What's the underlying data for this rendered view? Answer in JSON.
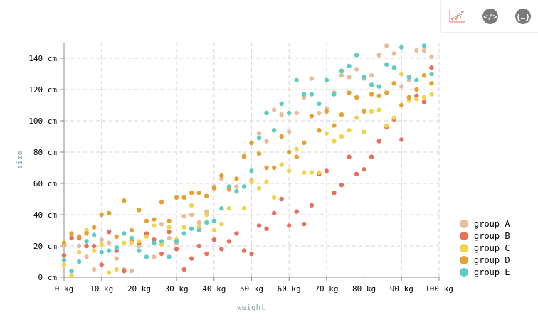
{
  "toolbar": {
    "icons": [
      "chart-preview-icon",
      "code-icon",
      "json-icon"
    ],
    "code_glyph": "</>",
    "json_glyph": "{…}"
  },
  "chart_data": {
    "type": "scatter",
    "title": "",
    "xlabel": "weight",
    "ylabel": "size",
    "xlim": [
      0,
      100
    ],
    "ylim": [
      0,
      150
    ],
    "x_unit": "kg",
    "y_unit": "cm",
    "x_ticks": [
      0,
      10,
      20,
      30,
      40,
      50,
      60,
      70,
      80,
      90,
      100
    ],
    "y_ticks": [
      0,
      20,
      40,
      60,
      80,
      100,
      120,
      140
    ],
    "x_tick_labels": [
      "0 kg",
      "10 kg",
      "20 kg",
      "30 kg",
      "40 kg",
      "50 kg",
      "60 kg",
      "70 kg",
      "80 kg",
      "90 kg",
      "100 kg"
    ],
    "y_tick_labels": [
      "0 cm",
      "20 cm",
      "40 cm",
      "60 cm",
      "80 cm",
      "100 cm",
      "120 cm",
      "140 cm"
    ],
    "grid": true,
    "legend_position": "right-bottom",
    "series": [
      {
        "name": "group A",
        "color": "#e8bc98",
        "points": [
          [
            0,
            20
          ],
          [
            2,
            27
          ],
          [
            4,
            20
          ],
          [
            6,
            13
          ],
          [
            8,
            5
          ],
          [
            10,
            24
          ],
          [
            12,
            22
          ],
          [
            14,
            12
          ],
          [
            16,
            5
          ],
          [
            18,
            4
          ],
          [
            20,
            20
          ],
          [
            22,
            27
          ],
          [
            24,
            13
          ],
          [
            26,
            34
          ],
          [
            28,
            25
          ],
          [
            30,
            22
          ],
          [
            32,
            39
          ],
          [
            34,
            40
          ],
          [
            36,
            35
          ],
          [
            38,
            42
          ],
          [
            40,
            58
          ],
          [
            42,
            63
          ],
          [
            44,
            56
          ],
          [
            46,
            58
          ],
          [
            48,
            78
          ],
          [
            50,
            62
          ],
          [
            52,
            92
          ],
          [
            54,
            87
          ],
          [
            56,
            107
          ],
          [
            58,
            104
          ],
          [
            60,
            93
          ],
          [
            62,
            105
          ],
          [
            64,
            115
          ],
          [
            66,
            127
          ],
          [
            68,
            105
          ],
          [
            70,
            108
          ],
          [
            72,
            118
          ],
          [
            74,
            129
          ],
          [
            76,
            128
          ],
          [
            78,
            133
          ],
          [
            80,
            127
          ],
          [
            82,
            129
          ],
          [
            84,
            142
          ],
          [
            86,
            148
          ],
          [
            88,
            143
          ],
          [
            90,
            122
          ],
          [
            92,
            126
          ],
          [
            94,
            145
          ],
          [
            96,
            145
          ],
          [
            98,
            141
          ]
        ]
      },
      {
        "name": "group B",
        "color": "#e8705a",
        "points": [
          [
            0,
            14
          ],
          [
            2,
            25
          ],
          [
            4,
            25
          ],
          [
            6,
            20
          ],
          [
            8,
            20
          ],
          [
            10,
            8
          ],
          [
            12,
            29
          ],
          [
            14,
            17
          ],
          [
            16,
            4
          ],
          [
            18,
            23
          ],
          [
            20,
            22
          ],
          [
            22,
            28
          ],
          [
            24,
            24
          ],
          [
            26,
            15
          ],
          [
            28,
            29
          ],
          [
            30,
            18
          ],
          [
            32,
            5
          ],
          [
            34,
            12
          ],
          [
            36,
            20
          ],
          [
            38,
            15
          ],
          [
            40,
            24
          ],
          [
            42,
            18
          ],
          [
            44,
            23
          ],
          [
            46,
            28
          ],
          [
            48,
            17
          ],
          [
            50,
            15
          ],
          [
            52,
            33
          ],
          [
            54,
            31
          ],
          [
            56,
            41
          ],
          [
            58,
            50
          ],
          [
            60,
            33
          ],
          [
            62,
            42
          ],
          [
            64,
            34
          ],
          [
            66,
            46
          ],
          [
            68,
            66
          ],
          [
            70,
            68
          ],
          [
            72,
            54
          ],
          [
            74,
            59
          ],
          [
            76,
            77
          ],
          [
            78,
            66
          ],
          [
            80,
            69
          ],
          [
            82,
            77
          ],
          [
            84,
            87
          ],
          [
            86,
            96
          ],
          [
            88,
            101
          ],
          [
            90,
            88
          ],
          [
            92,
            115
          ],
          [
            94,
            116
          ],
          [
            96,
            112
          ],
          [
            98,
            134
          ]
        ]
      },
      {
        "name": "group C",
        "color": "#efd44c",
        "points": [
          [
            0,
            8
          ],
          [
            2,
            1
          ],
          [
            4,
            16
          ],
          [
            6,
            30
          ],
          [
            8,
            17
          ],
          [
            10,
            21
          ],
          [
            12,
            3
          ],
          [
            14,
            5
          ],
          [
            16,
            22
          ],
          [
            18,
            22
          ],
          [
            20,
            23
          ],
          [
            22,
            26
          ],
          [
            24,
            33
          ],
          [
            26,
            21
          ],
          [
            28,
            32
          ],
          [
            30,
            24
          ],
          [
            32,
            32
          ],
          [
            34,
            46
          ],
          [
            36,
            32
          ],
          [
            38,
            40
          ],
          [
            40,
            30
          ],
          [
            42,
            34
          ],
          [
            44,
            44
          ],
          [
            46,
            55
          ],
          [
            48,
            44
          ],
          [
            50,
            61
          ],
          [
            52,
            57
          ],
          [
            54,
            61
          ],
          [
            56,
            51
          ],
          [
            58,
            72
          ],
          [
            60,
            68
          ],
          [
            62,
            82
          ],
          [
            64,
            67
          ],
          [
            66,
            67
          ],
          [
            68,
            67
          ],
          [
            70,
            92
          ],
          [
            72,
            87
          ],
          [
            74,
            90
          ],
          [
            76,
            94
          ],
          [
            78,
            102
          ],
          [
            80,
            93
          ],
          [
            82,
            106
          ],
          [
            84,
            107
          ],
          [
            86,
            97
          ],
          [
            88,
            102
          ],
          [
            90,
            130
          ],
          [
            92,
            113
          ],
          [
            94,
            114
          ],
          [
            96,
            115
          ],
          [
            98,
            117
          ]
        ]
      },
      {
        "name": "group D",
        "color": "#e4a030",
        "points": [
          [
            0,
            22
          ],
          [
            2,
            28
          ],
          [
            4,
            26
          ],
          [
            6,
            28
          ],
          [
            8,
            32
          ],
          [
            10,
            40
          ],
          [
            12,
            41
          ],
          [
            14,
            26
          ],
          [
            16,
            49
          ],
          [
            18,
            30
          ],
          [
            20,
            43
          ],
          [
            22,
            36
          ],
          [
            24,
            37
          ],
          [
            26,
            48
          ],
          [
            28,
            36
          ],
          [
            30,
            51
          ],
          [
            32,
            51
          ],
          [
            34,
            54
          ],
          [
            36,
            54
          ],
          [
            38,
            52
          ],
          [
            40,
            57
          ],
          [
            42,
            65
          ],
          [
            44,
            57
          ],
          [
            46,
            63
          ],
          [
            48,
            77
          ],
          [
            50,
            86
          ],
          [
            52,
            79
          ],
          [
            54,
            70
          ],
          [
            56,
            70
          ],
          [
            58,
            90
          ],
          [
            60,
            80
          ],
          [
            62,
            77
          ],
          [
            64,
            86
          ],
          [
            66,
            103
          ],
          [
            68,
            94
          ],
          [
            70,
            106
          ],
          [
            72,
            97
          ],
          [
            74,
            104
          ],
          [
            76,
            118
          ],
          [
            78,
            115
          ],
          [
            80,
            106
          ],
          [
            82,
            117
          ],
          [
            84,
            116
          ],
          [
            86,
            118
          ],
          [
            88,
            124
          ],
          [
            90,
            110
          ],
          [
            92,
            115
          ],
          [
            94,
            120
          ],
          [
            96,
            129
          ],
          [
            98,
            124
          ]
        ]
      },
      {
        "name": "group E",
        "color": "#5ccdc0",
        "points": [
          [
            0,
            11
          ],
          [
            2,
            4
          ],
          [
            4,
            10
          ],
          [
            6,
            23
          ],
          [
            8,
            27
          ],
          [
            10,
            16
          ],
          [
            12,
            17
          ],
          [
            14,
            19
          ],
          [
            16,
            28
          ],
          [
            18,
            25
          ],
          [
            20,
            17
          ],
          [
            22,
            13
          ],
          [
            24,
            22
          ],
          [
            26,
            23
          ],
          [
            28,
            13
          ],
          [
            30,
            23
          ],
          [
            32,
            28
          ],
          [
            34,
            31
          ],
          [
            36,
            30
          ],
          [
            38,
            35
          ],
          [
            40,
            36
          ],
          [
            42,
            44
          ],
          [
            44,
            58
          ],
          [
            46,
            55
          ],
          [
            48,
            58
          ],
          [
            50,
            68
          ],
          [
            52,
            89
          ],
          [
            54,
            105
          ],
          [
            56,
            94
          ],
          [
            58,
            111
          ],
          [
            60,
            105
          ],
          [
            62,
            126
          ],
          [
            64,
            117
          ],
          [
            66,
            117
          ],
          [
            68,
            111
          ],
          [
            70,
            126
          ],
          [
            72,
            117
          ],
          [
            74,
            132
          ],
          [
            76,
            135
          ],
          [
            78,
            142
          ],
          [
            80,
            128
          ],
          [
            82,
            123
          ],
          [
            84,
            122
          ],
          [
            86,
            136
          ],
          [
            88,
            134
          ],
          [
            90,
            147
          ],
          [
            92,
            128
          ],
          [
            94,
            126
          ],
          [
            96,
            148
          ],
          [
            98,
            130
          ]
        ]
      }
    ]
  }
}
